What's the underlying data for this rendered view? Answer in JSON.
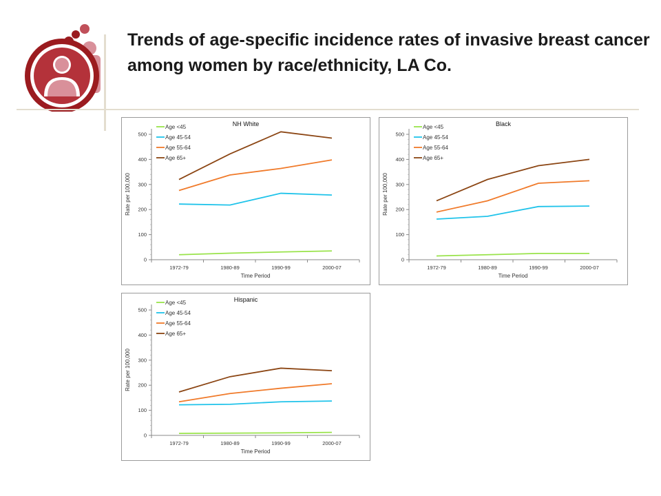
{
  "title": "Trends of age-specific incidence rates of invasive breast cancer among women by race/ethnicity, LA Co.",
  "colors": {
    "age_lt45": "#99e34a",
    "age_45_54": "#1fc3ea",
    "age_55_64": "#f07a2a",
    "age_65plus": "#8b4513",
    "logo_dark": "#9b1b1f",
    "logo_light": "#d9909a"
  },
  "logo_icon": "family-circle-logo-icon",
  "chart_data": [
    {
      "type": "line",
      "title": "NH White",
      "xlabel": "Time Period",
      "ylabel": "Rate per 100,000",
      "categories": [
        "1972-79",
        "1980-89",
        "1990-99",
        "2000-07"
      ],
      "ylim": [
        0,
        500
      ],
      "yticks": [
        "0",
        "100",
        "200",
        "300",
        "400",
        "500"
      ],
      "legend_position": "top-left",
      "series": [
        {
          "name": "Age <45",
          "values": [
            20,
            26,
            31,
            35
          ]
        },
        {
          "name": "Age 45-54",
          "values": [
            222,
            218,
            265,
            258
          ]
        },
        {
          "name": "Age 55-64",
          "values": [
            276,
            338,
            364,
            398
          ]
        },
        {
          "name": "Age 65+",
          "values": [
            320,
            422,
            510,
            485
          ]
        }
      ]
    },
    {
      "type": "line",
      "title": "Black",
      "xlabel": "Time Period",
      "ylabel": "Rate per 100,000",
      "categories": [
        "1972-79",
        "1980-89",
        "1990-99",
        "2000-07"
      ],
      "ylim": [
        0,
        500
      ],
      "yticks": [
        "0",
        "100",
        "200",
        "300",
        "400",
        "500"
      ],
      "legend_position": "top-left",
      "series": [
        {
          "name": "Age <45",
          "values": [
            15,
            20,
            25,
            25
          ]
        },
        {
          "name": "Age 45-54",
          "values": [
            162,
            173,
            212,
            214
          ]
        },
        {
          "name": "Age 55-64",
          "values": [
            190,
            235,
            305,
            315
          ]
        },
        {
          "name": "Age 65+",
          "values": [
            235,
            320,
            375,
            400
          ]
        }
      ]
    },
    {
      "type": "line",
      "title": "Hispanic",
      "xlabel": "Time Period",
      "ylabel": "Rate per 100,000",
      "categories": [
        "1972-79",
        "1980-89",
        "1990-99",
        "2000-07"
      ],
      "ylim": [
        0,
        500
      ],
      "yticks": [
        "0",
        "100",
        "200",
        "300",
        "400",
        "500"
      ],
      "legend_position": "top-left",
      "series": [
        {
          "name": "Age <45",
          "values": [
            8,
            9,
            10,
            12
          ]
        },
        {
          "name": "Age 45-54",
          "values": [
            122,
            124,
            134,
            137
          ]
        },
        {
          "name": "Age 55-64",
          "values": [
            134,
            167,
            188,
            206
          ]
        },
        {
          "name": "Age 65+",
          "values": [
            173,
            234,
            268,
            258
          ]
        }
      ]
    }
  ]
}
